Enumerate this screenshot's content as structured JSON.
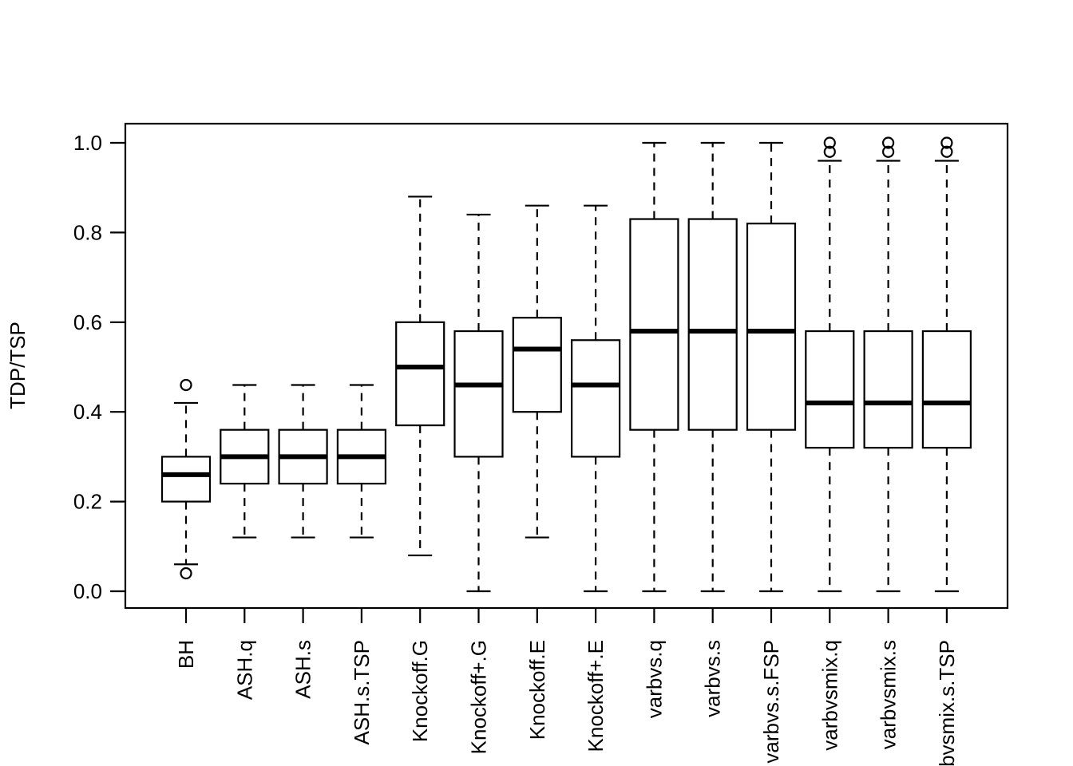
{
  "figure": {
    "background_color": "#ffffff",
    "ink_color": "#000000"
  },
  "chart_data": {
    "type": "boxplot",
    "title": "",
    "xlabel": "",
    "ylabel": "TDP/TSP",
    "orientation": "vertical",
    "grid": false,
    "legend": null,
    "ylim": [
      0.0,
      1.0
    ],
    "yticks": [
      0.0,
      0.2,
      0.4,
      0.6,
      0.8,
      1.0
    ],
    "ytick_labels": [
      "0.0",
      "0.2",
      "0.4",
      "0.6",
      "0.8",
      "1.0"
    ],
    "categories": [
      "BH",
      "ASH.q",
      "ASH.s",
      "ASH.s.TSP",
      "Knockoff.G",
      "Knockoff+.G",
      "Knockoff.E",
      "Knockoff+.E",
      "varbvs.q",
      "varbvs.s",
      "varbvs.s.FSP",
      "varbvsmix.q",
      "varbvsmix.s",
      "varbvsmix.s.TSP"
    ],
    "boxes": [
      {
        "label": "BH",
        "whisker_low": 0.06,
        "q1": 0.2,
        "median": 0.26,
        "q3": 0.3,
        "whisker_high": 0.42,
        "outliers": [
          0.04,
          0.46
        ]
      },
      {
        "label": "ASH.q",
        "whisker_low": 0.12,
        "q1": 0.24,
        "median": 0.3,
        "q3": 0.36,
        "whisker_high": 0.46,
        "outliers": []
      },
      {
        "label": "ASH.s",
        "whisker_low": 0.12,
        "q1": 0.24,
        "median": 0.3,
        "q3": 0.36,
        "whisker_high": 0.46,
        "outliers": []
      },
      {
        "label": "ASH.s.TSP",
        "whisker_low": 0.12,
        "q1": 0.24,
        "median": 0.3,
        "q3": 0.36,
        "whisker_high": 0.46,
        "outliers": []
      },
      {
        "label": "Knockoff.G",
        "whisker_low": 0.08,
        "q1": 0.37,
        "median": 0.5,
        "q3": 0.6,
        "whisker_high": 0.88,
        "outliers": []
      },
      {
        "label": "Knockoff+.G",
        "whisker_low": 0.0,
        "q1": 0.3,
        "median": 0.46,
        "q3": 0.58,
        "whisker_high": 0.84,
        "outliers": []
      },
      {
        "label": "Knockoff.E",
        "whisker_low": 0.12,
        "q1": 0.4,
        "median": 0.54,
        "q3": 0.61,
        "whisker_high": 0.86,
        "outliers": []
      },
      {
        "label": "Knockoff+.E",
        "whisker_low": 0.0,
        "q1": 0.3,
        "median": 0.46,
        "q3": 0.56,
        "whisker_high": 0.86,
        "outliers": []
      },
      {
        "label": "varbvs.q",
        "whisker_low": 0.0,
        "q1": 0.36,
        "median": 0.58,
        "q3": 0.83,
        "whisker_high": 1.0,
        "outliers": []
      },
      {
        "label": "varbvs.s",
        "whisker_low": 0.0,
        "q1": 0.36,
        "median": 0.58,
        "q3": 0.83,
        "whisker_high": 1.0,
        "outliers": []
      },
      {
        "label": "varbvs.s.FSP",
        "whisker_low": 0.0,
        "q1": 0.36,
        "median": 0.58,
        "q3": 0.82,
        "whisker_high": 1.0,
        "outliers": []
      },
      {
        "label": "varbvsmix.q",
        "whisker_low": 0.0,
        "q1": 0.32,
        "median": 0.42,
        "q3": 0.58,
        "whisker_high": 0.96,
        "outliers": [
          0.98,
          1.0
        ]
      },
      {
        "label": "varbvsmix.s",
        "whisker_low": 0.0,
        "q1": 0.32,
        "median": 0.42,
        "q3": 0.58,
        "whisker_high": 0.96,
        "outliers": [
          0.98,
          1.0
        ]
      },
      {
        "label": "varbvsmix.s.TSP",
        "whisker_low": 0.0,
        "q1": 0.32,
        "median": 0.42,
        "q3": 0.58,
        "whisker_high": 0.96,
        "outliers": [
          0.98,
          1.0
        ]
      }
    ]
  }
}
